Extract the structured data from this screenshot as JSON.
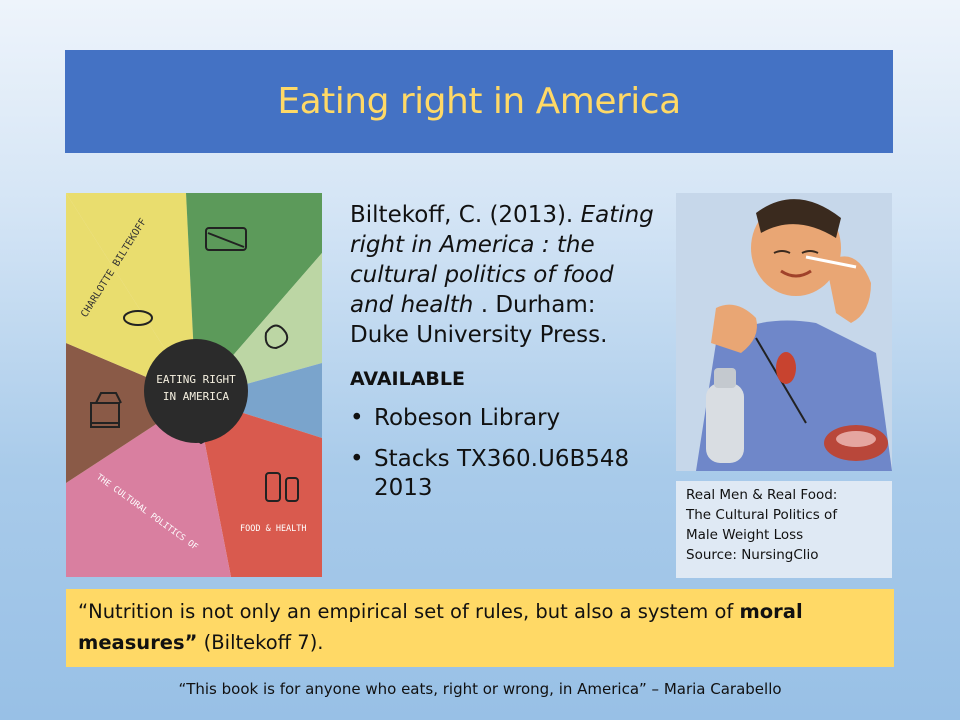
{
  "slide": {
    "title": "Eating right in America"
  },
  "cover": {
    "author_text": "CHARLOTTE BILTEKOFF",
    "center_title_line1": "EATING RIGHT",
    "center_title_line2": "IN AMERICA",
    "subtitle_left": "THE CULTURAL POLITICS OF",
    "subtitle_right": "FOOD & HEALTH",
    "colors": {
      "yellow": "#e9dd6e",
      "green": "#5c9a5a",
      "light_green": "#bcd6a4",
      "blue": "#7aa4cc",
      "red": "#d95a4e",
      "pink": "#d97fa0",
      "brown": "#8a5a47",
      "center": "#2b2b2b"
    }
  },
  "citation": {
    "line1": "Biltekoff, C. (2013).",
    "title_italic": "Eating right in America : the cultural politics of food and health",
    "publisher": ". Durham: Duke University Press.",
    "available_label": "AVAILABLE",
    "locations": [
      "Robeson Library",
      "Stacks TX360.U6B548 2013"
    ]
  },
  "poster": {
    "caption_line1": "Real Men & Real Food:",
    "caption_line2": "The Cultural Politics of",
    "caption_line3": "Male Weight Loss",
    "caption_line4": "Source: NursingClio"
  },
  "quote": {
    "part1": "“Nutrition is not only an empirical set of rules, but also a system of ",
    "bold": "moral measures”",
    "part2": " (Biltekoff 7)."
  },
  "footer": {
    "text": "“This book is for anyone who eats, right or wrong, in America” – Maria Carabello"
  }
}
